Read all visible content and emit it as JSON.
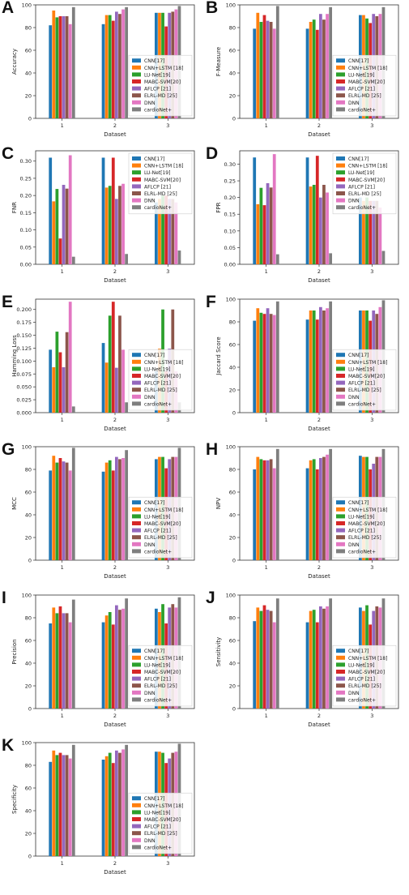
{
  "legend_entries": [
    "CNN[17]",
    "CNN+LSTM [18]",
    "LU-Net[19]",
    "MABC-SVM[20]",
    "AFLCP [21]",
    "ELRL-MD [25]",
    "DNN",
    "cardioNet+"
  ],
  "series_colors": [
    "#1f77b4",
    "#ff7f0e",
    "#2ca02c",
    "#d62728",
    "#9467bd",
    "#8c564b",
    "#e377c2",
    "#7f7f7f"
  ],
  "chart_data": [
    {
      "type": "bar",
      "letter": "A",
      "xlabel": "Dataset",
      "ylabel": "Accuracy",
      "categories": [
        "1",
        "2",
        "3"
      ],
      "ylim": [
        0,
        100
      ],
      "yticks": [
        0,
        20,
        40,
        60,
        80,
        100
      ],
      "legend": "lower-right",
      "series": [
        {
          "name": "CNN[17]",
          "values": [
            82,
            83,
            93
          ]
        },
        {
          "name": "CNN+LSTM [18]",
          "values": [
            95,
            91,
            93
          ]
        },
        {
          "name": "LU-Net[19]",
          "values": [
            89,
            91,
            93
          ]
        },
        {
          "name": "MABC-SVM[20]",
          "values": [
            90,
            86,
            81
          ]
        },
        {
          "name": "AFLCP [21]",
          "values": [
            90,
            94,
            93
          ]
        },
        {
          "name": "ELRL-MD [25]",
          "values": [
            90,
            92,
            94
          ]
        },
        {
          "name": "DNN",
          "values": [
            83,
            96,
            96
          ]
        },
        {
          "name": "cardioNet+",
          "values": [
            98,
            98,
            99
          ]
        }
      ]
    },
    {
      "type": "bar",
      "letter": "B",
      "xlabel": "Dataset",
      "ylabel": "F-Measure",
      "categories": [
        "1",
        "2",
        "3"
      ],
      "ylim": [
        0,
        100
      ],
      "yticks": [
        0,
        20,
        40,
        60,
        80,
        100
      ],
      "legend": "lower-right",
      "series": [
        {
          "name": "CNN[17]",
          "values": [
            79,
            79,
            91
          ]
        },
        {
          "name": "CNN+LSTM [18]",
          "values": [
            93,
            85,
            91
          ]
        },
        {
          "name": "LU-Net[19]",
          "values": [
            85,
            87,
            88
          ]
        },
        {
          "name": "MABC-SVM[20]",
          "values": [
            91,
            78,
            84
          ]
        },
        {
          "name": "AFLCP [21]",
          "values": [
            86,
            92,
            92
          ]
        },
        {
          "name": "ELRL-MD [25]",
          "values": [
            85,
            87,
            90
          ]
        },
        {
          "name": "DNN",
          "values": [
            79,
            92,
            92
          ]
        },
        {
          "name": "cardioNet+",
          "values": [
            99,
            98,
            98
          ]
        }
      ]
    },
    {
      "type": "bar",
      "letter": "C",
      "xlabel": "Dataset",
      "ylabel": "FNR",
      "categories": [
        "1",
        "2",
        "3"
      ],
      "ylim": [
        0,
        0.33
      ],
      "yticks": [
        0,
        0.05,
        0.1,
        0.15,
        0.2,
        0.25,
        0.3
      ],
      "yfmt": 2,
      "legend": "upper-right",
      "series": [
        {
          "name": "CNN[17]",
          "values": [
            0.31,
            0.31,
            0.18
          ]
        },
        {
          "name": "CNN+LSTM [18]",
          "values": [
            0.183,
            0.223,
            0.19
          ]
        },
        {
          "name": "LU-Net[19]",
          "values": [
            0.219,
            0.228,
            0.2
          ]
        },
        {
          "name": "MABC-SVM[20]",
          "values": [
            0.075,
            0.31,
            0.2
          ]
        },
        {
          "name": "AFLCP [21]",
          "values": [
            0.231,
            0.19,
            0.19
          ]
        },
        {
          "name": "ELRL-MD [25]",
          "values": [
            0.22,
            0.228,
            0.19
          ]
        },
        {
          "name": "DNN",
          "values": [
            0.317,
            0.234,
            0.18
          ]
        },
        {
          "name": "cardioNet+",
          "values": [
            0.022,
            0.03,
            0.04
          ]
        }
      ]
    },
    {
      "type": "bar",
      "letter": "D",
      "xlabel": "Dataset",
      "ylabel": "FPR",
      "categories": [
        "1",
        "2",
        "3"
      ],
      "ylim": [
        0,
        0.34
      ],
      "yticks": [
        0,
        0.05,
        0.1,
        0.15,
        0.2,
        0.25,
        0.3
      ],
      "yfmt": 2,
      "legend": "upper-right",
      "series": [
        {
          "name": "CNN[17]",
          "values": [
            0.32,
            0.32,
            0.2
          ]
        },
        {
          "name": "CNN+LSTM [18]",
          "values": [
            0.18,
            0.233,
            0.19
          ]
        },
        {
          "name": "LU-Net[19]",
          "values": [
            0.229,
            0.238,
            0.2
          ]
        },
        {
          "name": "MABC-SVM[20]",
          "values": [
            0.177,
            0.325,
            0.19
          ]
        },
        {
          "name": "AFLCP [21]",
          "values": [
            0.243,
            0.2,
            0.19
          ]
        },
        {
          "name": "ELRL-MD [25]",
          "values": [
            0.23,
            0.238,
            0.19
          ]
        },
        {
          "name": "DNN",
          "values": [
            0.33,
            0.215,
            0.17
          ]
        },
        {
          "name": "cardioNet+",
          "values": [
            0.03,
            0.033,
            0.04
          ]
        }
      ]
    },
    {
      "type": "bar",
      "letter": "E",
      "xlabel": "Dataset",
      "ylabel": "Hamming Loss",
      "categories": [
        "1",
        "2",
        "3"
      ],
      "ylim": [
        0,
        0.22
      ],
      "yticks": [
        0,
        0.025,
        0.05,
        0.075,
        0.1,
        0.125,
        0.15,
        0.175,
        0.2
      ],
      "yfmt": 3,
      "legend": "lower-right",
      "series": [
        {
          "name": "CNN[17]",
          "values": [
            0.122,
            0.135,
            0.08
          ]
        },
        {
          "name": "CNN+LSTM [18]",
          "values": [
            0.088,
            0.097,
            0.124
          ]
        },
        {
          "name": "LU-Net[19]",
          "values": [
            0.157,
            0.188,
            0.2
          ]
        },
        {
          "name": "MABC-SVM[20]",
          "values": [
            0.117,
            0.215,
            0.08
          ]
        },
        {
          "name": "AFLCP [21]",
          "values": [
            0.088,
            0.087,
            0.124
          ]
        },
        {
          "name": "ELRL-MD [25]",
          "values": [
            0.156,
            0.188,
            0.2
          ]
        },
        {
          "name": "DNN",
          "values": [
            0.215,
            0.122,
            0.08
          ]
        },
        {
          "name": "cardioNet+",
          "values": [
            0.012,
            0.02,
            0.02
          ]
        }
      ]
    },
    {
      "type": "bar",
      "letter": "F",
      "xlabel": "Dataset",
      "ylabel": "Jaccard Score",
      "categories": [
        "1",
        "2",
        "3"
      ],
      "ylim": [
        0,
        100
      ],
      "yticks": [
        0,
        20,
        40,
        60,
        80,
        100
      ],
      "legend": "lower-right",
      "series": [
        {
          "name": "CNN[17]",
          "values": [
            81,
            82,
            90
          ]
        },
        {
          "name": "CNN+LSTM [18]",
          "values": [
            92,
            90,
            90
          ]
        },
        {
          "name": "LU-Net[19]",
          "values": [
            88,
            90,
            90
          ]
        },
        {
          "name": "MABC-SVM[20]",
          "values": [
            87,
            82,
            81
          ]
        },
        {
          "name": "AFLCP [21]",
          "values": [
            92,
            93,
            90
          ]
        },
        {
          "name": "ELRL-MD [25]",
          "values": [
            87,
            90,
            87
          ]
        },
        {
          "name": "DNN",
          "values": [
            86,
            92,
            93
          ]
        },
        {
          "name": "cardioNet+",
          "values": [
            98,
            98,
            99
          ]
        }
      ]
    },
    {
      "type": "bar",
      "letter": "G",
      "xlabel": "Dataset",
      "ylabel": "MCC",
      "categories": [
        "1",
        "2",
        "3"
      ],
      "ylim": [
        0,
        100
      ],
      "yticks": [
        0,
        20,
        40,
        60,
        80,
        100
      ],
      "legend": "lower-right",
      "series": [
        {
          "name": "CNN[17]",
          "values": [
            79,
            78,
            89
          ]
        },
        {
          "name": "CNN+LSTM [18]",
          "values": [
            92,
            86,
            91
          ]
        },
        {
          "name": "LU-Net[19]",
          "values": [
            86,
            88,
            91
          ]
        },
        {
          "name": "MABC-SVM[20]",
          "values": [
            90,
            79,
            81
          ]
        },
        {
          "name": "AFLCP [21]",
          "values": [
            87,
            91,
            89
          ]
        },
        {
          "name": "ELRL-MD [25]",
          "values": [
            86,
            89,
            91
          ]
        },
        {
          "name": "DNN",
          "values": [
            79,
            90,
            91
          ]
        },
        {
          "name": "cardioNet+",
          "values": [
            99,
            97,
            99
          ]
        }
      ]
    },
    {
      "type": "bar",
      "letter": "H",
      "xlabel": "Dataset",
      "ylabel": "NPV",
      "categories": [
        "1",
        "2",
        "3"
      ],
      "ylim": [
        0,
        100
      ],
      "yticks": [
        0,
        20,
        40,
        60,
        80,
        100
      ],
      "legend": "lower-right",
      "series": [
        {
          "name": "CNN[17]",
          "values": [
            80,
            81,
            92
          ]
        },
        {
          "name": "CNN+LSTM [18]",
          "values": [
            91,
            88,
            91
          ]
        },
        {
          "name": "LU-Net[19]",
          "values": [
            89,
            89,
            91
          ]
        },
        {
          "name": "MABC-SVM[20]",
          "values": [
            88,
            80,
            80
          ]
        },
        {
          "name": "AFLCP [21]",
          "values": [
            88,
            90,
            85
          ]
        },
        {
          "name": "ELRL-MD [25]",
          "values": [
            89,
            91,
            91
          ]
        },
        {
          "name": "DNN",
          "values": [
            81,
            93,
            91
          ]
        },
        {
          "name": "cardioNet+",
          "values": [
            98,
            98,
            98
          ]
        }
      ]
    },
    {
      "type": "bar",
      "letter": "I",
      "xlabel": "Dataset",
      "ylabel": "Precision",
      "categories": [
        "1",
        "2",
        "3"
      ],
      "ylim": [
        0,
        100
      ],
      "yticks": [
        0,
        20,
        40,
        60,
        80,
        100
      ],
      "legend": "lower-right",
      "series": [
        {
          "name": "CNN[17]",
          "values": [
            75,
            76,
            88
          ]
        },
        {
          "name": "CNN+LSTM [18]",
          "values": [
            89,
            82,
            85
          ]
        },
        {
          "name": "LU-Net[19]",
          "values": [
            84,
            85,
            92
          ]
        },
        {
          "name": "MABC-SVM[20]",
          "values": [
            90,
            74,
            75
          ]
        },
        {
          "name": "AFLCP [21]",
          "values": [
            84,
            91,
            89
          ]
        },
        {
          "name": "ELRL-MD [25]",
          "values": [
            84,
            87,
            92
          ]
        },
        {
          "name": "DNN",
          "values": [
            76,
            88,
            89
          ]
        },
        {
          "name": "cardioNet+",
          "values": [
            96,
            97,
            98
          ]
        }
      ]
    },
    {
      "type": "bar",
      "letter": "J",
      "xlabel": "Dataset",
      "ylabel": "Sensitivity",
      "categories": [
        "1",
        "2",
        "3"
      ],
      "ylim": [
        0,
        100
      ],
      "yticks": [
        0,
        20,
        40,
        60,
        80,
        100
      ],
      "legend": "lower-right",
      "series": [
        {
          "name": "CNN[17]",
          "values": [
            77,
            76,
            89
          ]
        },
        {
          "name": "CNN+LSTM [18]",
          "values": [
            89,
            86,
            86
          ]
        },
        {
          "name": "LU-Net[19]",
          "values": [
            86,
            87,
            91
          ]
        },
        {
          "name": "MABC-SVM[20]",
          "values": [
            91,
            76,
            74
          ]
        },
        {
          "name": "AFLCP [21]",
          "values": [
            87,
            90,
            86
          ]
        },
        {
          "name": "ELRL-MD [25]",
          "values": [
            86,
            88,
            90
          ]
        },
        {
          "name": "DNN",
          "values": [
            76,
            90,
            89
          ]
        },
        {
          "name": "cardioNet+",
          "values": [
            97,
            97,
            97
          ]
        }
      ]
    },
    {
      "type": "bar",
      "letter": "K",
      "xlabel": "Dataset",
      "ylabel": "Specificity",
      "categories": [
        "1",
        "2",
        "3"
      ],
      "ylim": [
        0,
        100
      ],
      "yticks": [
        0,
        20,
        40,
        60,
        80,
        100
      ],
      "legend": "lower-right",
      "series": [
        {
          "name": "CNN[17]",
          "values": [
            83,
            85,
            92
          ]
        },
        {
          "name": "CNN+LSTM [18]",
          "values": [
            93,
            88,
            92
          ]
        },
        {
          "name": "LU-Net[19]",
          "values": [
            89,
            91,
            91
          ]
        },
        {
          "name": "MABC-SVM[20]",
          "values": [
            91,
            82,
            82
          ]
        },
        {
          "name": "AFLCP [21]",
          "values": [
            89,
            93,
            86
          ]
        },
        {
          "name": "ELRL-MD [25]",
          "values": [
            89,
            91,
            91
          ]
        },
        {
          "name": "DNN",
          "values": [
            86,
            94,
            92
          ]
        },
        {
          "name": "cardioNet+",
          "values": [
            98,
            98,
            99
          ]
        }
      ]
    }
  ]
}
